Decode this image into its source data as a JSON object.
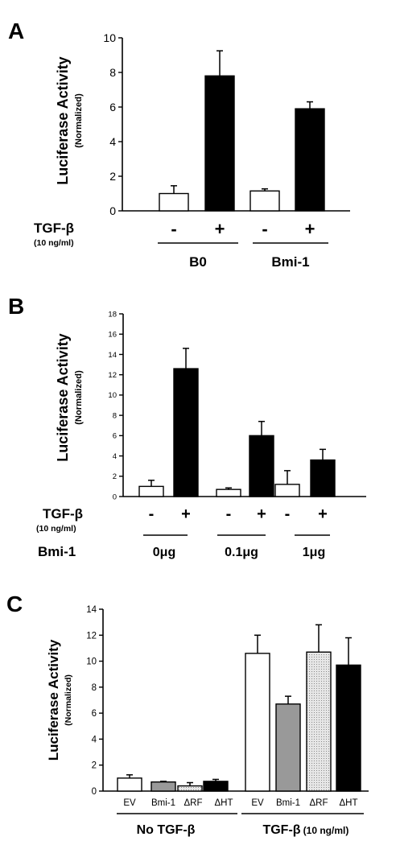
{
  "chart_data": [
    {
      "panel": "A",
      "type": "bar",
      "ylabel": "Luciferase Activity",
      "ylabel_sub": "(Normalized)",
      "ylim": [
        0,
        10
      ],
      "yticks": [
        0,
        2,
        4,
        6,
        8,
        10
      ],
      "treatment_label": "TGF-β",
      "treatment_sub": "(10 ng/ml)",
      "bars": [
        {
          "category": "B0",
          "treatment": "-",
          "value": 1.0,
          "error": 0.45,
          "fill": "#ffffff"
        },
        {
          "category": "B0",
          "treatment": "+",
          "value": 7.8,
          "error": 1.45,
          "fill": "#000000"
        },
        {
          "category": "Bmi-1",
          "treatment": "-",
          "value": 1.15,
          "error": 0.12,
          "fill": "#ffffff"
        },
        {
          "category": "Bmi-1",
          "treatment": "+",
          "value": 5.9,
          "error": 0.4,
          "fill": "#000000"
        }
      ],
      "groups": [
        "B0",
        "Bmi-1"
      ]
    },
    {
      "panel": "B",
      "type": "bar",
      "ylabel": "Luciferase Activity",
      "ylabel_sub": "(Normalized)",
      "ylim": [
        0,
        18
      ],
      "yticks": [
        0,
        2,
        4,
        6,
        8,
        10,
        12,
        14,
        16,
        18
      ],
      "treatment_label": "TGF-β",
      "treatment_sub": "(10 ng/ml)",
      "row_label": "Bmi-1",
      "bars": [
        {
          "category": "0μg",
          "treatment": "-",
          "value": 1.0,
          "error": 0.6,
          "fill": "#ffffff"
        },
        {
          "category": "0μg",
          "treatment": "+",
          "value": 12.6,
          "error": 2.0,
          "fill": "#000000"
        },
        {
          "category": "0.1μg",
          "treatment": "-",
          "value": 0.7,
          "error": 0.15,
          "fill": "#ffffff"
        },
        {
          "category": "0.1μg",
          "treatment": "+",
          "value": 6.0,
          "error": 1.4,
          "fill": "#000000"
        },
        {
          "category": "1μg",
          "treatment": "-",
          "value": 1.2,
          "error": 1.35,
          "fill": "#ffffff"
        },
        {
          "category": "1μg",
          "treatment": "+",
          "value": 3.6,
          "error": 1.05,
          "fill": "#000000"
        }
      ],
      "groups": [
        "0μg",
        "0.1μg",
        "1μg"
      ]
    },
    {
      "panel": "C",
      "type": "bar",
      "ylabel": "Luciferase Activity",
      "ylabel_sub": "(Normalized)",
      "ylim": [
        0,
        14
      ],
      "yticks": [
        0,
        2,
        4,
        6,
        8,
        10,
        12,
        14
      ],
      "bars": [
        {
          "category": "EV",
          "group": "No TGF-β",
          "value": 1.0,
          "error": 0.25,
          "fill": "#ffffff"
        },
        {
          "category": "Bmi-1",
          "group": "No TGF-β",
          "value": 0.7,
          "error": 0.05,
          "fill": "#999999"
        },
        {
          "category": "ΔRF",
          "group": "No TGF-β",
          "value": 0.4,
          "error": 0.25,
          "fill": "#d8d8d8"
        },
        {
          "category": "ΔHT",
          "group": "No TGF-β",
          "value": 0.75,
          "error": 0.15,
          "fill": "#000000"
        },
        {
          "category": "EV",
          "group": "TGF-β",
          "value": 10.6,
          "error": 1.4,
          "fill": "#ffffff"
        },
        {
          "category": "Bmi-1",
          "group": "TGF-β",
          "value": 6.7,
          "error": 0.6,
          "fill": "#999999"
        },
        {
          "category": "ΔRF",
          "group": "TGF-β",
          "value": 10.7,
          "error": 2.1,
          "fill": "#d8d8d8"
        },
        {
          "category": "ΔHT",
          "group": "TGF-β",
          "value": 9.7,
          "error": 2.1,
          "fill": "#000000"
        }
      ],
      "groups": [
        {
          "label": "No TGF-β",
          "sub": ""
        },
        {
          "label": "TGF-β",
          "sub": "(10 ng/ml)"
        }
      ]
    }
  ]
}
